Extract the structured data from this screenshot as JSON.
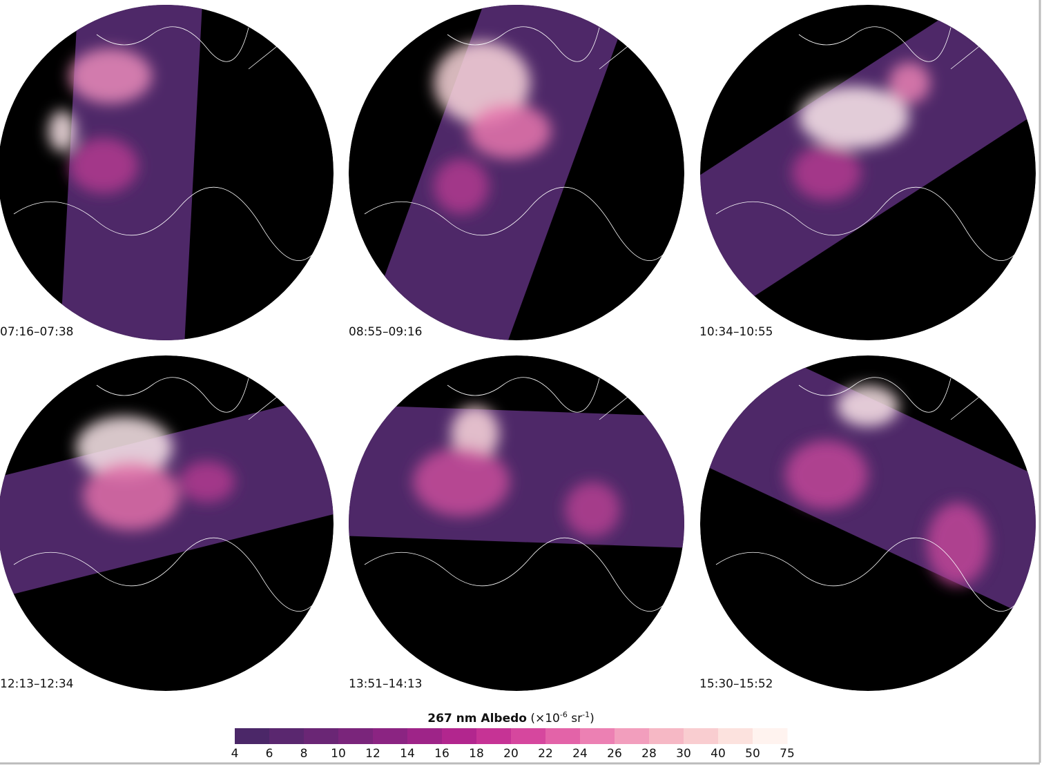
{
  "panels": [
    {
      "label": "07:16–07:38"
    },
    {
      "label": "08:55–09:16"
    },
    {
      "label": "10:34–10:55"
    },
    {
      "label": "12:13–12:34"
    },
    {
      "label": "13:51–14:13"
    },
    {
      "label": "15:30–15:52"
    }
  ],
  "colorbar": {
    "title": "267 nm Albedo",
    "unit_prefix": "(×10",
    "unit_exp1": "-6",
    "unit_mid": " sr",
    "unit_exp2": "-1",
    "unit_suffix": ")",
    "ticks": [
      4,
      6,
      8,
      10,
      12,
      14,
      16,
      18,
      20,
      22,
      24,
      26,
      28,
      30,
      40,
      50,
      75
    ],
    "colors": [
      "#4b2768",
      "#5a276f",
      "#6a2675",
      "#7a257b",
      "#8b2482",
      "#9e2488",
      "#b2268e",
      "#c63395",
      "#d6479e",
      "#e363a8",
      "#ec80b3",
      "#f29ebd",
      "#f6b8c5",
      "#f9cdd0",
      "#fce2de",
      "#fff3ef"
    ]
  }
}
